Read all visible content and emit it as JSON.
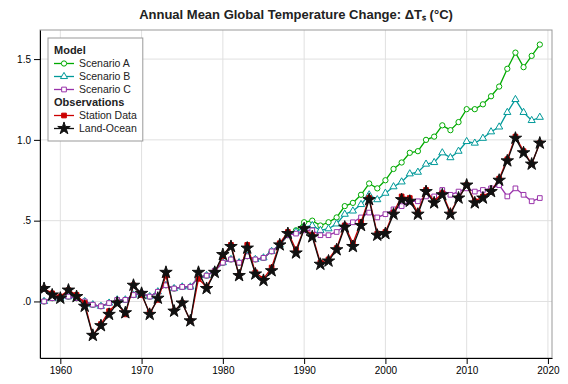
{
  "chart_data": {
    "type": "line",
    "title": "Annual Mean Global Temperature Change: ΔTₛ (°C)",
    "xlim": [
      1957.5,
      2020.5
    ],
    "ylim": [
      -0.35,
      1.68
    ],
    "xticks": [
      1960,
      1970,
      1980,
      1990,
      2000,
      2010,
      2020
    ],
    "yticks": [
      {
        "value": 0.0,
        "label": ".0"
      },
      {
        "value": 0.5,
        "label": ".5"
      },
      {
        "value": 1.0,
        "label": "1.0"
      },
      {
        "value": 1.5,
        "label": "1.5"
      }
    ],
    "grid": true,
    "legend": "upper left",
    "x": [
      1958,
      1959,
      1960,
      1961,
      1962,
      1963,
      1964,
      1965,
      1966,
      1967,
      1968,
      1969,
      1970,
      1971,
      1972,
      1973,
      1974,
      1975,
      1976,
      1977,
      1978,
      1979,
      1980,
      1981,
      1982,
      1983,
      1984,
      1985,
      1986,
      1987,
      1988,
      1989,
      1990,
      1991,
      1992,
      1993,
      1994,
      1995,
      1996,
      1997,
      1998,
      1999,
      2000,
      2001,
      2002,
      2003,
      2004,
      2005,
      2006,
      2007,
      2008,
      2009,
      2010,
      2011,
      2012,
      2013,
      2014,
      2015,
      2016,
      2017,
      2018,
      2019
    ],
    "series": [
      {
        "name": "Scenario A",
        "group": "Model",
        "color": "#00aa00",
        "marker": "circle-open",
        "values": [
          0.0,
          0.02,
          0.02,
          0.03,
          0.02,
          0.0,
          -0.02,
          -0.03,
          -0.01,
          0.01,
          0.01,
          0.04,
          0.05,
          0.03,
          0.06,
          0.1,
          0.08,
          0.09,
          0.09,
          0.15,
          0.16,
          0.19,
          0.24,
          0.26,
          0.24,
          0.28,
          0.26,
          0.27,
          0.31,
          0.35,
          0.41,
          0.44,
          0.49,
          0.5,
          0.47,
          0.49,
          0.52,
          0.59,
          0.61,
          0.66,
          0.73,
          0.7,
          0.75,
          0.82,
          0.86,
          0.92,
          0.93,
          1.0,
          1.02,
          1.09,
          1.06,
          1.11,
          1.19,
          1.19,
          1.22,
          1.27,
          1.33,
          1.44,
          1.54,
          1.45,
          1.52,
          1.59
        ]
      },
      {
        "name": "Scenario B",
        "group": "Model",
        "color": "#009999",
        "marker": "triangle-open",
        "values": [
          0.0,
          0.02,
          0.02,
          0.03,
          0.02,
          0.0,
          -0.02,
          -0.03,
          -0.01,
          0.01,
          0.01,
          0.04,
          0.05,
          0.03,
          0.06,
          0.1,
          0.08,
          0.09,
          0.09,
          0.15,
          0.16,
          0.19,
          0.24,
          0.26,
          0.24,
          0.28,
          0.26,
          0.27,
          0.31,
          0.35,
          0.41,
          0.43,
          0.46,
          0.47,
          0.44,
          0.45,
          0.48,
          0.54,
          0.56,
          0.6,
          0.66,
          0.63,
          0.67,
          0.71,
          0.74,
          0.79,
          0.8,
          0.85,
          0.86,
          0.92,
          0.89,
          0.93,
          0.99,
          0.98,
          1.01,
          1.05,
          1.08,
          1.17,
          1.25,
          1.17,
          1.12,
          1.14
        ]
      },
      {
        "name": "Scenario C",
        "group": "Model",
        "color": "#9933aa",
        "marker": "square-open",
        "values": [
          0.0,
          0.02,
          0.02,
          0.03,
          0.02,
          0.0,
          -0.02,
          -0.03,
          -0.01,
          0.01,
          0.01,
          0.04,
          0.05,
          0.03,
          0.06,
          0.1,
          0.08,
          0.09,
          0.09,
          0.15,
          0.16,
          0.19,
          0.24,
          0.26,
          0.24,
          0.28,
          0.26,
          0.27,
          0.31,
          0.35,
          0.41,
          0.42,
          0.44,
          0.44,
          0.41,
          0.41,
          0.43,
          0.47,
          0.49,
          0.52,
          0.55,
          0.52,
          0.54,
          0.57,
          0.59,
          0.62,
          0.62,
          0.65,
          0.65,
          0.69,
          0.66,
          0.68,
          0.7,
          0.68,
          0.69,
          0.7,
          0.72,
          0.65,
          0.7,
          0.66,
          0.62,
          0.64
        ]
      },
      {
        "name": "Station Data",
        "group": "Observations",
        "color": "#cc0000",
        "marker": "square",
        "values": [
          0.08,
          0.05,
          0.03,
          0.07,
          0.04,
          -0.01,
          -0.21,
          -0.14,
          -0.06,
          -0.01,
          -0.08,
          0.1,
          0.04,
          -0.07,
          0.01,
          0.16,
          -0.06,
          -0.01,
          -0.12,
          0.14,
          0.09,
          0.18,
          0.28,
          0.35,
          0.16,
          0.35,
          0.18,
          0.14,
          0.21,
          0.36,
          0.43,
          0.32,
          0.45,
          0.41,
          0.24,
          0.26,
          0.33,
          0.47,
          0.36,
          0.49,
          0.64,
          0.42,
          0.43,
          0.55,
          0.65,
          0.64,
          0.55,
          0.69,
          0.62,
          0.67,
          0.55,
          0.64,
          0.72,
          0.62,
          0.65,
          0.68,
          0.76,
          0.88,
          1.02,
          0.93,
          0.85,
          0.98
        ]
      },
      {
        "name": "Land-Ocean",
        "group": "Observations",
        "color": "#111111",
        "marker": "star",
        "values": [
          0.08,
          0.04,
          0.02,
          0.07,
          0.03,
          -0.03,
          -0.21,
          -0.15,
          -0.08,
          -0.01,
          -0.07,
          0.1,
          0.05,
          -0.08,
          0.02,
          0.18,
          -0.06,
          -0.01,
          -0.12,
          0.18,
          0.08,
          0.18,
          0.29,
          0.34,
          0.16,
          0.33,
          0.17,
          0.13,
          0.19,
          0.35,
          0.42,
          0.3,
          0.45,
          0.4,
          0.23,
          0.25,
          0.32,
          0.46,
          0.34,
          0.47,
          0.63,
          0.41,
          0.42,
          0.54,
          0.63,
          0.62,
          0.54,
          0.68,
          0.61,
          0.66,
          0.54,
          0.64,
          0.72,
          0.61,
          0.64,
          0.68,
          0.75,
          0.87,
          1.01,
          0.92,
          0.85,
          0.98
        ]
      }
    ]
  }
}
